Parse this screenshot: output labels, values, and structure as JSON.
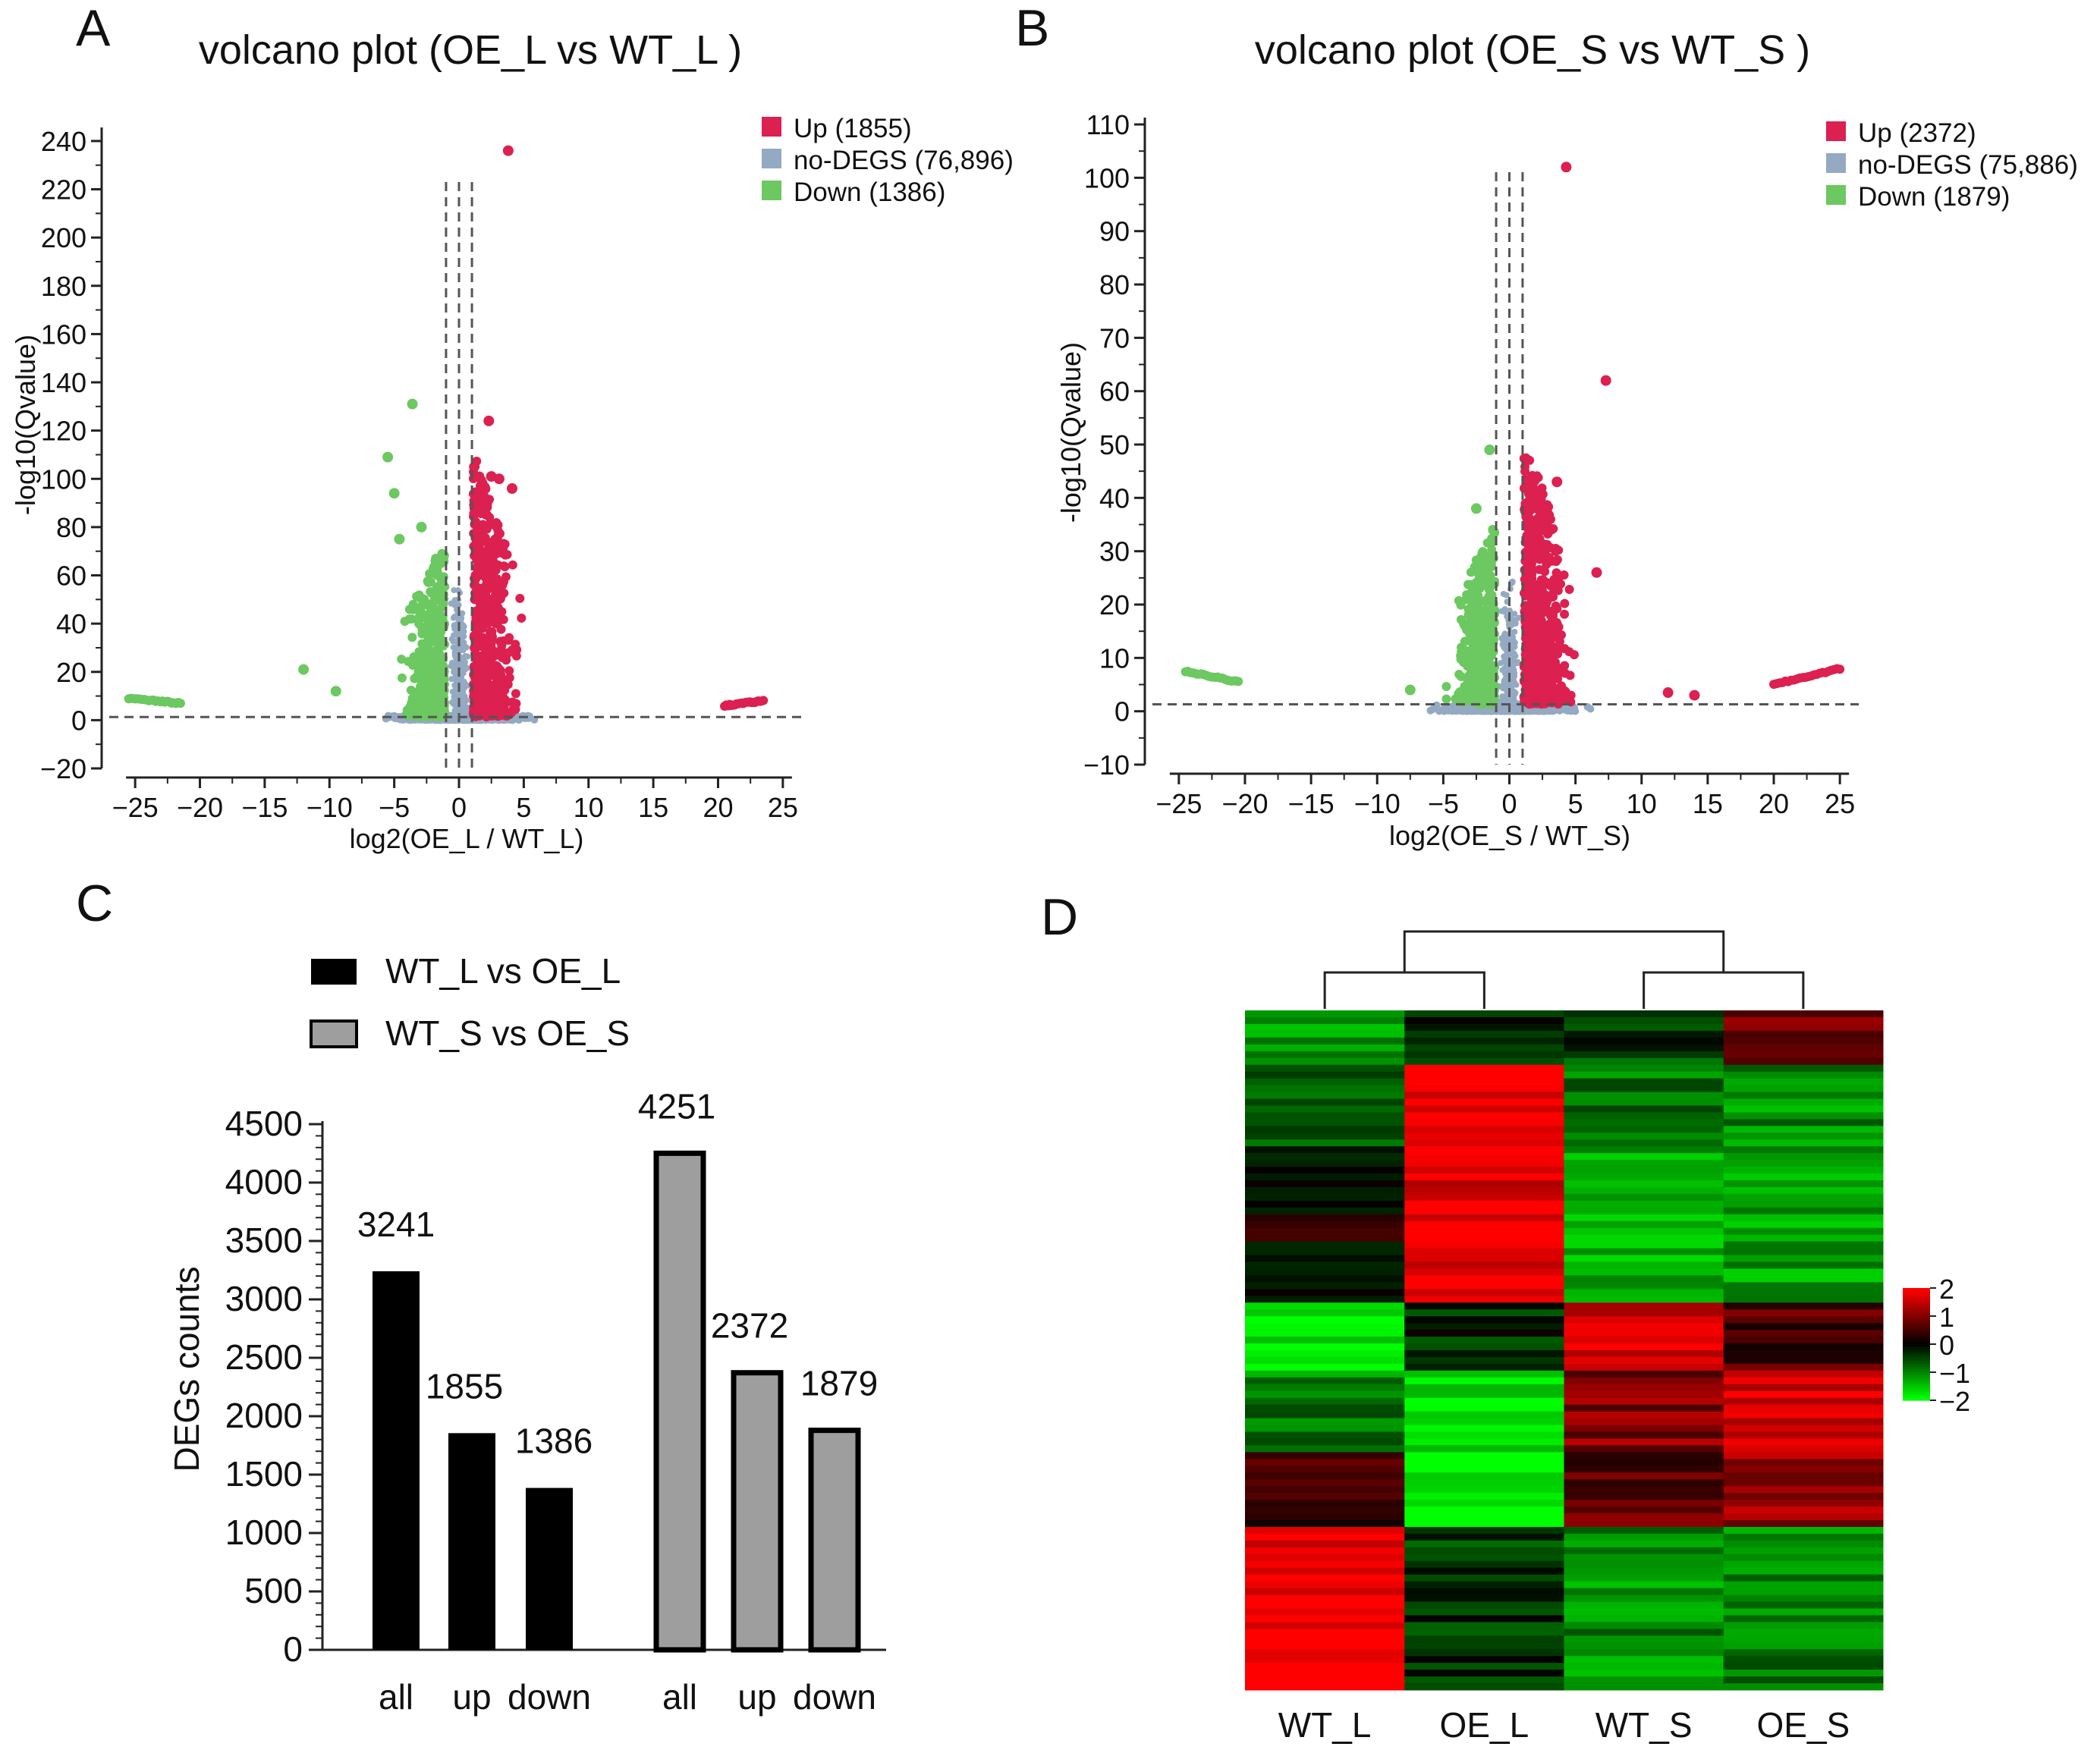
{
  "panels": {
    "A": {
      "letter": "A",
      "chart_data": {
        "type": "scatter",
        "title": "volcano plot (OE_L vs WT_L )",
        "xlabel": "log2(OE_L / WT_L)",
        "ylabel": "-log10(Qvalue)",
        "xlim": [
          -27,
          27
        ],
        "ylim": [
          -20,
          245
        ],
        "xticks": [
          -25,
          -20,
          -15,
          -10,
          -5,
          0,
          5,
          10,
          15,
          20,
          25
        ],
        "yticks": [
          -20,
          0,
          20,
          40,
          60,
          80,
          100,
          120,
          140,
          160,
          180,
          200,
          220,
          240
        ],
        "threshold_x": [
          -1,
          0,
          1
        ],
        "threshold_y": 1.3,
        "legend": [
          {
            "label": "Up (1855)",
            "color": "#dc2050"
          },
          {
            "label": "no-DEGS (76,896)",
            "color": "#94a9c2"
          },
          {
            "label": "Down (1386)",
            "color": "#6cc860"
          }
        ],
        "highlight_points": [
          {
            "x": 3.8,
            "y": 236,
            "group": "up"
          },
          {
            "x": 2.3,
            "y": 124,
            "group": "up"
          },
          {
            "x": 2.5,
            "y": 101,
            "group": "up"
          },
          {
            "x": 3.1,
            "y": 100,
            "group": "up"
          },
          {
            "x": 4.1,
            "y": 96,
            "group": "up"
          },
          {
            "x": -3.6,
            "y": 131,
            "group": "down"
          },
          {
            "x": -5.5,
            "y": 109,
            "group": "down"
          },
          {
            "x": -5.0,
            "y": 94,
            "group": "down"
          },
          {
            "x": -2.9,
            "y": 80,
            "group": "down"
          },
          {
            "x": -4.6,
            "y": 75,
            "group": "down"
          },
          {
            "x": -12,
            "y": 21,
            "group": "down"
          },
          {
            "x": -9.5,
            "y": 12,
            "group": "down"
          }
        ],
        "outlier_tails": [
          {
            "group": "down",
            "x_from": -25.5,
            "x_to": -21.5,
            "y_from": 9,
            "y_to": 7
          },
          {
            "group": "up",
            "x_from": 20.5,
            "x_to": 23.5,
            "y_from": 6,
            "y_to": 8
          }
        ]
      }
    },
    "B": {
      "letter": "B",
      "chart_data": {
        "type": "scatter",
        "title": "volcano plot (OE_S vs WT_S )",
        "xlabel": "log2(OE_S / WT_S)",
        "ylabel": "-log10(Qvalue)",
        "xlim": [
          -27,
          27
        ],
        "ylim": [
          -10,
          111
        ],
        "xticks": [
          -25,
          -20,
          -15,
          -10,
          -5,
          0,
          5,
          10,
          15,
          20,
          25
        ],
        "yticks": [
          -10,
          0,
          10,
          20,
          30,
          40,
          50,
          60,
          70,
          80,
          90,
          100,
          110
        ],
        "threshold_x": [
          -1,
          0,
          1
        ],
        "threshold_y": 1.3,
        "legend": [
          {
            "label": "Up (2372)",
            "color": "#dc2050"
          },
          {
            "label": "no-DEGS (75,886)",
            "color": "#94a9c2"
          },
          {
            "label": "Down (1879)",
            "color": "#6cc860"
          }
        ],
        "highlight_points": [
          {
            "x": 4.3,
            "y": 102,
            "group": "up"
          },
          {
            "x": 7.3,
            "y": 62,
            "group": "up"
          },
          {
            "x": 3.6,
            "y": 43,
            "group": "up"
          },
          {
            "x": 6.6,
            "y": 26,
            "group": "up"
          },
          {
            "x": 12.0,
            "y": 3.5,
            "group": "up"
          },
          {
            "x": 14.0,
            "y": 3.0,
            "group": "up"
          },
          {
            "x": -1.5,
            "y": 49,
            "group": "down"
          },
          {
            "x": -2.5,
            "y": 38,
            "group": "down"
          },
          {
            "x": -7.5,
            "y": 4,
            "group": "down"
          }
        ],
        "outlier_tails": [
          {
            "group": "down",
            "x_from": -24.5,
            "x_to": -20.5,
            "y_from": 7.5,
            "y_to": 5.5
          },
          {
            "group": "up",
            "x_from": 20,
            "x_to": 25,
            "y_from": 5,
            "y_to": 8
          }
        ]
      }
    },
    "C": {
      "letter": "C",
      "chart_data": {
        "type": "bar",
        "ylabel": "DEGs counts",
        "ylim": [
          0,
          4500
        ],
        "yticks": [
          0,
          500,
          1000,
          1500,
          2000,
          2500,
          3000,
          3500,
          4000,
          4500
        ],
        "categories": [
          "all",
          "up",
          "down",
          "all",
          "up",
          "down"
        ],
        "values": [
          3241,
          1855,
          1386,
          4251,
          2372,
          1879
        ],
        "groups": [
          0,
          0,
          0,
          1,
          1,
          1
        ],
        "series": [
          {
            "name": "WT_L vs OE_L",
            "color": "#000000"
          },
          {
            "name": "WT_S vs OE_S",
            "color": "#9e9e9e"
          }
        ]
      }
    },
    "D": {
      "letter": "D",
      "chart_data": {
        "type": "heatmap",
        "columns": [
          "WT_L",
          "OE_L",
          "WT_S",
          "OE_S"
        ],
        "color_scale": {
          "min": -2,
          "max": 2,
          "ticks": [
            2,
            1,
            0,
            -1,
            -2
          ],
          "low": "#00ff00",
          "mid": "#000000",
          "high": "#ff0000"
        },
        "row_blocks": [
          {
            "weight": 0.08,
            "values": [
              -1.3,
              -0.2,
              -0.5,
              1.0
            ]
          },
          {
            "weight": 0.12,
            "values": [
              -0.7,
              1.9,
              -0.9,
              -1.1
            ]
          },
          {
            "weight": 0.23,
            "values": [
              0.1,
              1.8,
              -1.4,
              -1.3
            ]
          },
          {
            "weight": 0.1,
            "values": [
              -1.8,
              -0.3,
              1.6,
              0.6
            ]
          },
          {
            "weight": 0.12,
            "values": [
              -1.0,
              -1.6,
              1.0,
              1.7
            ]
          },
          {
            "weight": 0.11,
            "values": [
              0.4,
              -2.0,
              0.7,
              1.2
            ]
          },
          {
            "weight": 0.24,
            "values": [
              1.95,
              -0.4,
              -1.1,
              -1.0
            ]
          }
        ],
        "dendrogram": "((WT_L, OE_L), (WT_S, OE_S))"
      }
    }
  }
}
